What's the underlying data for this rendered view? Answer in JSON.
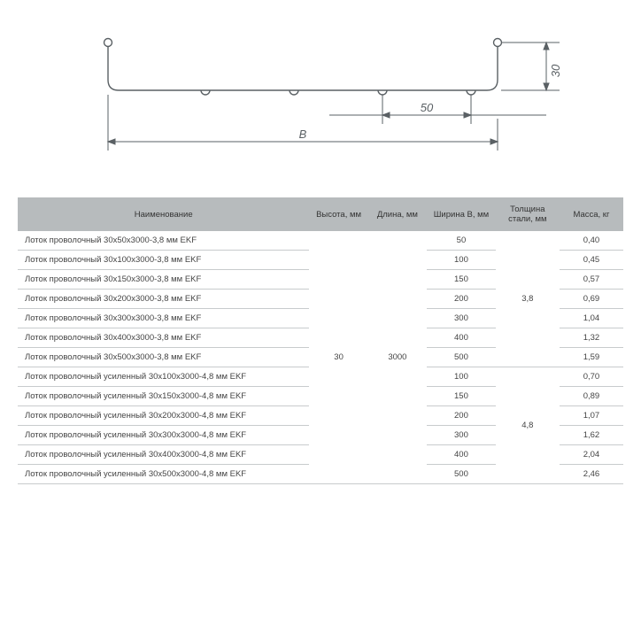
{
  "diagram": {
    "stroke": "#5a6064",
    "stroke_width": 1.4,
    "fill": "#ffffff",
    "labels": {
      "side": "30",
      "pitch": "50",
      "width": "B"
    },
    "label_font_size": 13,
    "label_font_style": "italic"
  },
  "table": {
    "header_bg": "#b7bbbd",
    "row_border": "#c8cbcd",
    "columns": [
      "Наименование",
      "Высота, мм",
      "Длина, мм",
      "Ширина В, мм",
      "Толщина стали, мм",
      "Масса, кг"
    ],
    "height_merged": "30",
    "length_merged": "3000",
    "thickness_group1": "3,8",
    "thickness_group2": "4,8",
    "rows": [
      {
        "name": "Лоток проволочный 30х50х3000-3,8 мм EKF",
        "b": "50",
        "m": "0,40"
      },
      {
        "name": "Лоток проволочный 30х100х3000-3,8 мм EKF",
        "b": "100",
        "m": "0,45"
      },
      {
        "name": "Лоток проволочный 30х150х3000-3,8 мм EKF",
        "b": "150",
        "m": "0,57"
      },
      {
        "name": "Лоток проволочный 30х200х3000-3,8 мм EKF",
        "b": "200",
        "m": "0,69"
      },
      {
        "name": "Лоток проволочный 30х300х3000-3,8 мм EKF",
        "b": "300",
        "m": "1,04"
      },
      {
        "name": "Лоток проволочный 30х400х3000-3,8 мм EKF",
        "b": "400",
        "m": "1,32"
      },
      {
        "name": "Лоток проволочный 30х500х3000-3,8 мм EKF",
        "b": "500",
        "m": "1,59"
      },
      {
        "name": "Лоток проволочный усиленный 30х100х3000-4,8 мм EKF",
        "b": "100",
        "m": "0,70"
      },
      {
        "name": "Лоток проволочный усиленный 30х150х3000-4,8 мм EKF",
        "b": "150",
        "m": "0,89"
      },
      {
        "name": "Лоток проволочный усиленный 30х200х3000-4,8 мм EKF",
        "b": "200",
        "m": "1,07"
      },
      {
        "name": "Лоток проволочный усиленный 30х300х3000-4,8 мм EKF",
        "b": "300",
        "m": "1,62"
      },
      {
        "name": "Лоток проволочный усиленный 30х400х3000-4,8 мм EKF",
        "b": "400",
        "m": "2,04"
      },
      {
        "name": "Лоток проволочный усиленный 30х500х3000-4,8 мм EKF",
        "b": "500",
        "m": "2,46"
      }
    ]
  }
}
